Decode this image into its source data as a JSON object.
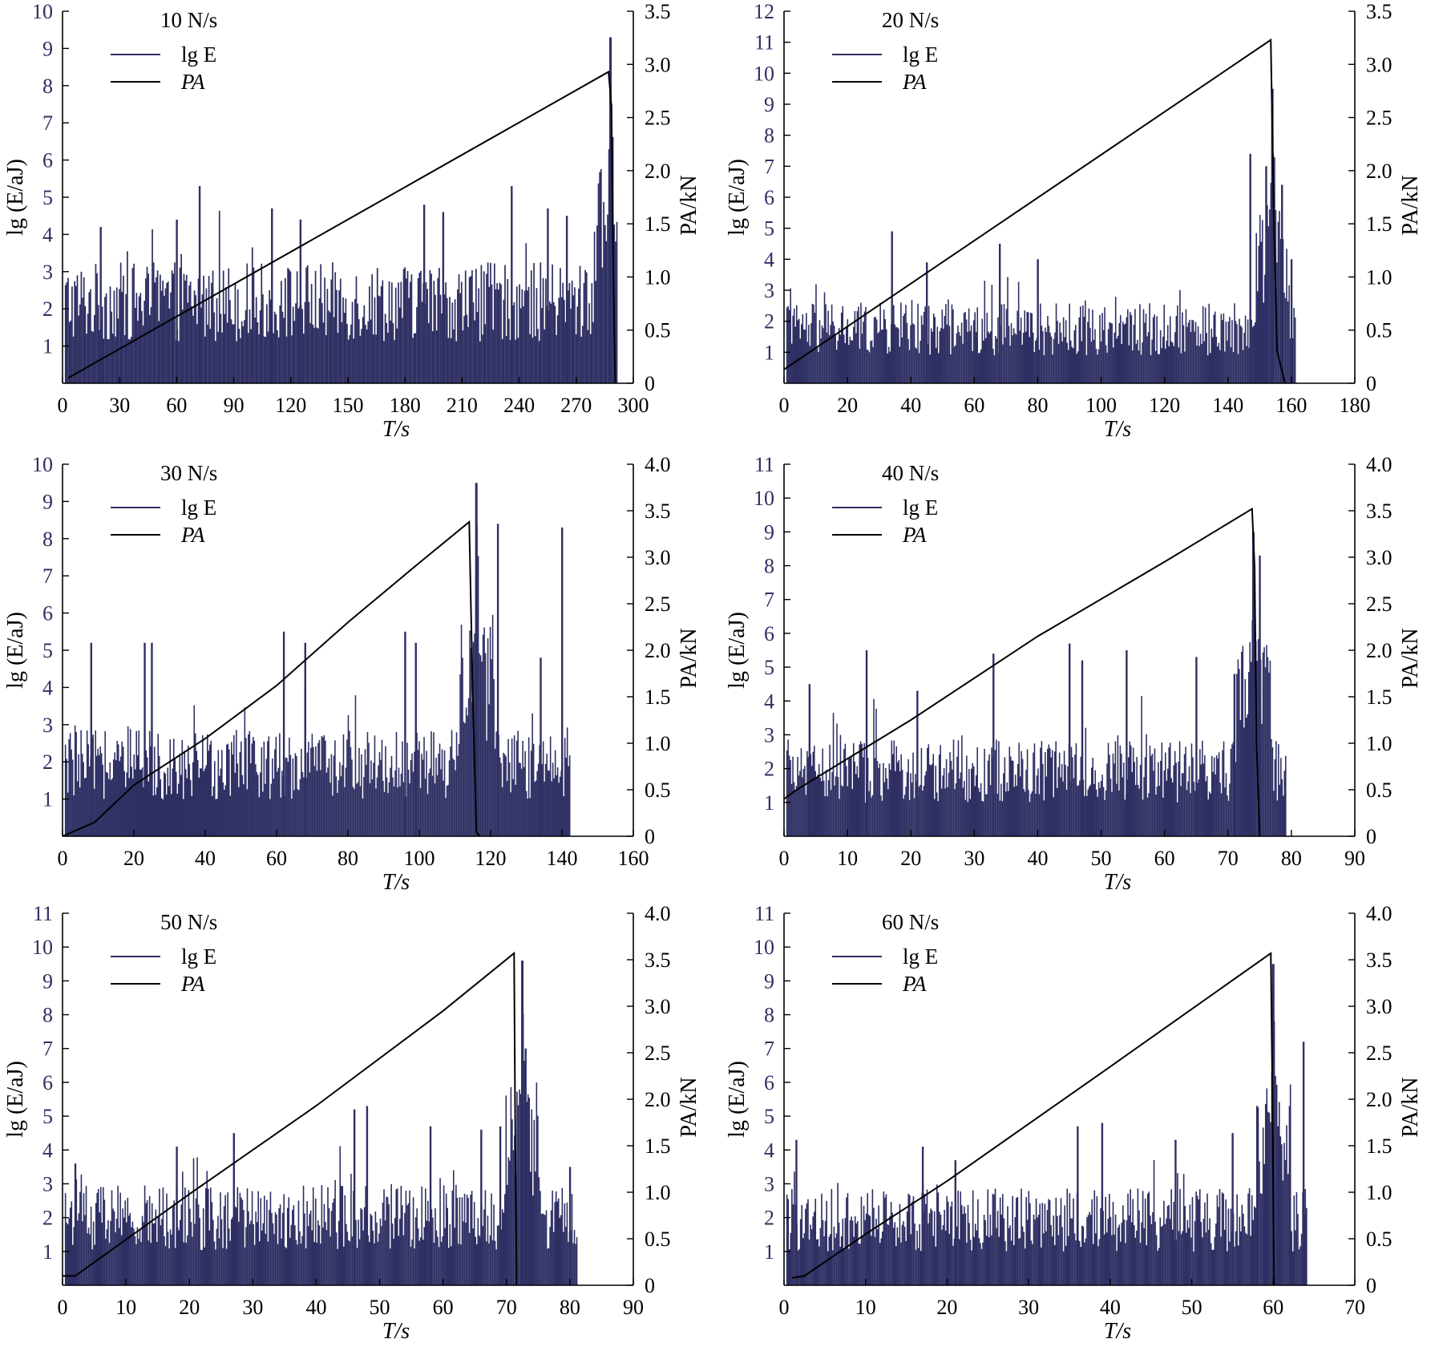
{
  "figure": {
    "colors": {
      "energy": "#2e2f63",
      "load": "#000000",
      "axis": "#000000",
      "left_ticks": "#2e2f63"
    },
    "common": {
      "xlabel": "T/s",
      "ylabel_left": "lg (E/aJ)",
      "ylabel_right": "PA/kN",
      "legend_energy": "lg E",
      "legend_load": "PA"
    }
  },
  "chart_data": [
    {
      "type": "bar+line",
      "title": "10 N/s",
      "xlabel": "T/s",
      "ylabel_left": "lg (E/aJ)",
      "ylabel_right": "PA/kN",
      "xlim": [
        0,
        300
      ],
      "xticks": [
        0,
        30,
        60,
        90,
        120,
        150,
        180,
        210,
        240,
        270,
        300
      ],
      "ylim_left": [
        0,
        10
      ],
      "yticks_left": [
        1,
        2,
        3,
        4,
        5,
        6,
        7,
        8,
        9,
        10
      ],
      "ylim_right": [
        0,
        3.5
      ],
      "yticks_right": [
        "0",
        "0.5",
        "1.0",
        "1.5",
        "2.0",
        "2.5",
        "3.0",
        "3.5"
      ],
      "series": [
        {
          "name": "lg E",
          "kind": "bars",
          "end": 291,
          "base_level": 2.5,
          "peak_t": 288,
          "peak_value": 9.3,
          "spikes": [
            [
              20,
              4.2
            ],
            [
              60,
              4.4
            ],
            [
              72,
              5.3
            ],
            [
              110,
              4.7
            ],
            [
              125,
              4.4
            ],
            [
              190,
              4.8
            ],
            [
              200,
              4.6
            ],
            [
              236,
              5.3
            ],
            [
              255,
              4.7
            ],
            [
              265,
              4.5
            ]
          ]
        },
        {
          "name": "PA",
          "kind": "line",
          "points": [
            [
              3,
              0.05
            ],
            [
              287,
              2.93
            ],
            [
              288.5,
              2.6
            ],
            [
              289.5,
              1.0
            ],
            [
              290.5,
              0.0
            ]
          ]
        }
      ]
    },
    {
      "type": "bar+line",
      "title": "20 N/s",
      "xlabel": "T/s",
      "ylabel_left": "lg (E/aJ)",
      "ylabel_right": "PA/kN",
      "xlim": [
        0,
        180
      ],
      "xticks": [
        0,
        20,
        40,
        60,
        80,
        100,
        120,
        140,
        160,
        180
      ],
      "ylim_left": [
        0,
        12
      ],
      "yticks_left": [
        1,
        2,
        3,
        4,
        5,
        6,
        7,
        8,
        9,
        10,
        11,
        12
      ],
      "ylim_right": [
        0,
        3.5
      ],
      "yticks_right": [
        "0",
        "0.5",
        "1.0",
        "1.5",
        "2.0",
        "2.5",
        "3.0",
        "3.5"
      ],
      "series": [
        {
          "name": "lg E",
          "kind": "bars",
          "end": 161,
          "base_level": 2.0,
          "peak_t": 154,
          "peak_value": 9.5,
          "spikes": [
            [
              34,
              4.9
            ],
            [
              45,
              3.9
            ],
            [
              68,
              4.5
            ],
            [
              80,
              4.0
            ],
            [
              147,
              7.4
            ],
            [
              152,
              7.0
            ],
            [
              157,
              6.4
            ],
            [
              160,
              4.0
            ]
          ]
        },
        {
          "name": "PA",
          "kind": "line",
          "points": [
            [
              0,
              0.13
            ],
            [
              153.5,
              3.23
            ],
            [
              154.5,
              1.5
            ],
            [
              155.5,
              0.3
            ],
            [
              158,
              0.0
            ]
          ]
        }
      ]
    },
    {
      "type": "bar+line",
      "title": "30 N/s",
      "xlabel": "T/s",
      "ylabel_left": "lg (E/aJ)",
      "ylabel_right": "PA/kN",
      "xlim": [
        0,
        160
      ],
      "xticks": [
        0,
        20,
        40,
        60,
        80,
        100,
        120,
        140,
        160
      ],
      "ylim_left": [
        0,
        10
      ],
      "yticks_left": [
        1,
        2,
        3,
        4,
        5,
        6,
        7,
        8,
        9,
        10
      ],
      "ylim_right": [
        0,
        4.0
      ],
      "yticks_right": [
        "0",
        "0.5",
        "1.0",
        "1.5",
        "2.0",
        "2.5",
        "3.0",
        "3.5",
        "4.0"
      ],
      "series": [
        {
          "name": "lg E",
          "kind": "bars",
          "end": 142,
          "base_level": 2.2,
          "peak_t": 116,
          "peak_value": 9.5,
          "spikes": [
            [
              8,
              5.2
            ],
            [
              23,
              5.2
            ],
            [
              25,
              5.2
            ],
            [
              62,
              5.5
            ],
            [
              68,
              5.2
            ],
            [
              96,
              5.5
            ],
            [
              99,
              5.2
            ],
            [
              122,
              8.4
            ],
            [
              140,
              8.3
            ],
            [
              134,
              4.8
            ]
          ]
        },
        {
          "name": "PA",
          "kind": "line",
          "points": [
            [
              0,
              0.0
            ],
            [
              9,
              0.15
            ],
            [
              20,
              0.55
            ],
            [
              40,
              1.05
            ],
            [
              60,
              1.62
            ],
            [
              80,
              2.3
            ],
            [
              100,
              2.94
            ],
            [
              114,
              3.38
            ],
            [
              115,
              1.5
            ],
            [
              116,
              0.05
            ],
            [
              117,
              0.0
            ]
          ]
        }
      ]
    },
    {
      "type": "bar+line",
      "title": "40 N/s",
      "xlabel": "T/s",
      "ylabel_left": "lg (E/aJ)",
      "ylabel_right": "PA/kN",
      "xlim": [
        0,
        90
      ],
      "xticks": [
        0,
        10,
        20,
        30,
        40,
        50,
        60,
        70,
        80,
        90
      ],
      "ylim_left": [
        0,
        11
      ],
      "yticks_left": [
        1,
        2,
        3,
        4,
        5,
        6,
        7,
        8,
        9,
        10,
        11
      ],
      "ylim_right": [
        0,
        4.0
      ],
      "yticks_right": [
        "0",
        "0.5",
        "1.0",
        "1.5",
        "2.0",
        "2.5",
        "3.0",
        "3.5",
        "4.0"
      ],
      "series": [
        {
          "name": "lg E",
          "kind": "bars",
          "end": 79,
          "base_level": 2.2,
          "peak_t": 74,
          "peak_value": 9.0,
          "spikes": [
            [
              4,
              4.5
            ],
            [
              13,
              5.5
            ],
            [
              21,
              4.3
            ],
            [
              33,
              5.4
            ],
            [
              45,
              5.7
            ],
            [
              47,
              5.2
            ],
            [
              54,
              5.5
            ],
            [
              65,
              5.3
            ],
            [
              71,
              4.8
            ],
            [
              75,
              8.3
            ]
          ]
        },
        {
          "name": "PA",
          "kind": "line",
          "points": [
            [
              0,
              0.4
            ],
            [
              2,
              0.5
            ],
            [
              20,
              1.25
            ],
            [
              40,
              2.15
            ],
            [
              60,
              2.95
            ],
            [
              73.8,
              3.52
            ],
            [
              74.2,
              2.9
            ],
            [
              74.5,
              1.0
            ],
            [
              75,
              0.0
            ]
          ]
        }
      ]
    },
    {
      "type": "bar+line",
      "title": "50 N/s",
      "xlabel": "T/s",
      "ylabel_left": "lg (E/aJ)",
      "ylabel_right": "PA/kN",
      "xlim": [
        0,
        90
      ],
      "xticks": [
        0,
        10,
        20,
        30,
        40,
        50,
        60,
        70,
        80,
        90
      ],
      "ylim_left": [
        0,
        11
      ],
      "yticks_left": [
        1,
        2,
        3,
        4,
        5,
        6,
        7,
        8,
        9,
        10,
        11
      ],
      "ylim_right": [
        0,
        4.0
      ],
      "yticks_right": [
        "0",
        "0.5",
        "1.0",
        "1.5",
        "2.0",
        "2.5",
        "3.0",
        "3.5",
        "4.0"
      ],
      "series": [
        {
          "name": "lg E",
          "kind": "bars",
          "end": 81,
          "base_level": 2.3,
          "peak_t": 72.5,
          "peak_value": 9.6,
          "spikes": [
            [
              2,
              3.6
            ],
            [
              18,
              4.1
            ],
            [
              27,
              4.5
            ],
            [
              46,
              5.2
            ],
            [
              48,
              5.3
            ],
            [
              58,
              4.7
            ],
            [
              66,
              4.6
            ],
            [
              69,
              4.7
            ],
            [
              73,
              7.0
            ],
            [
              80,
              3.5
            ]
          ]
        },
        {
          "name": "PA",
          "kind": "line",
          "points": [
            [
              0,
              0.1
            ],
            [
              2,
              0.1
            ],
            [
              20,
              0.98
            ],
            [
              40,
              1.93
            ],
            [
              60,
              2.95
            ],
            [
              71.2,
              3.57
            ],
            [
              71.4,
              1.5
            ],
            [
              71.6,
              0.0
            ]
          ]
        }
      ]
    },
    {
      "type": "bar+line",
      "title": "60 N/s",
      "xlabel": "T/s",
      "ylabel_left": "lg (E/aJ)",
      "ylabel_right": "PA/kN",
      "xlim": [
        0,
        70
      ],
      "xticks": [
        0,
        10,
        20,
        30,
        40,
        50,
        60,
        70
      ],
      "ylim_left": [
        0,
        11
      ],
      "yticks_left": [
        1,
        2,
        3,
        4,
        5,
        6,
        7,
        8,
        9,
        10,
        11
      ],
      "ylim_right": [
        0,
        4.0
      ],
      "yticks_right": [
        "0",
        "0.5",
        "1.0",
        "1.5",
        "2.0",
        "2.5",
        "3.0",
        "3.5",
        "4.0"
      ],
      "series": [
        {
          "name": "lg E",
          "kind": "bars",
          "end": 64,
          "base_level": 2.2,
          "peak_t": 60,
          "peak_value": 9.5,
          "spikes": [
            [
              1.5,
              4.3
            ],
            [
              17,
              4.1
            ],
            [
              21,
              3.7
            ],
            [
              36,
              4.7
            ],
            [
              39,
              4.8
            ],
            [
              48,
              4.3
            ],
            [
              55,
              4.5
            ],
            [
              58,
              5.3
            ],
            [
              62,
              5.3
            ],
            [
              63.7,
              7.2
            ]
          ]
        },
        {
          "name": "PA",
          "kind": "line",
          "points": [
            [
              1,
              0.08
            ],
            [
              2.5,
              0.1
            ],
            [
              10,
              0.55
            ],
            [
              20,
              1.12
            ],
            [
              40,
              2.35
            ],
            [
              59.7,
              3.57
            ],
            [
              59.9,
              2.0
            ],
            [
              60.1,
              0.0
            ]
          ]
        }
      ]
    }
  ]
}
